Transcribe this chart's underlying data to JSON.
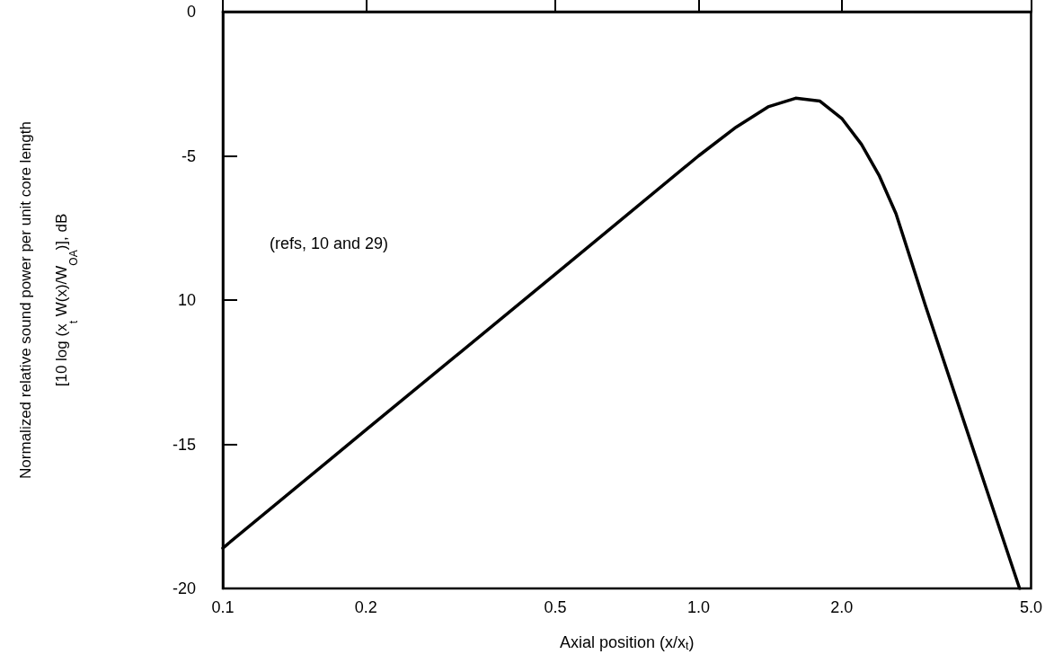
{
  "chart_data": {
    "type": "line",
    "xlabel": "Axial position (x/x$_{t}$)",
    "ylabel": "Normalized relative sound power per unit core length\n[10 log (x$_{t}$ W(x)/W$_{OA}$)], dB",
    "annotations": [
      "(refs, 10 and 29)"
    ],
    "x": [
      0.1,
      0.2,
      0.5,
      1.0,
      1.2,
      1.4,
      1.6,
      1.8,
      2.0,
      2.2,
      2.4,
      2.6,
      3.0,
      4.0,
      4.73
    ],
    "series": [
      {
        "color": "#000000",
        "values": [
          -18.6,
          -14.5,
          -9.1,
          -5.0,
          -4.0,
          -3.3,
          -3.0,
          -3.1,
          -3.7,
          -4.6,
          -5.7,
          -7.0,
          -10.2,
          -16.4,
          -20.0
        ]
      }
    ],
    "log": "x",
    "xlim": [
      0.1,
      5.0
    ],
    "xticks": [
      0.1,
      0.2,
      0.5,
      {
        "value": 1.0,
        "label": "1.0"
      },
      {
        "value": 2.0,
        "label": "2.0"
      },
      {
        "value": 5.0,
        "label": "5.0"
      }
    ],
    "ylim": [
      -20,
      0
    ],
    "yticks": [
      -20,
      -15,
      {
        "value": -10,
        "label": "10"
      },
      -5,
      0
    ],
    "grid": false,
    "marker": "none",
    "line_style": "solid"
  }
}
